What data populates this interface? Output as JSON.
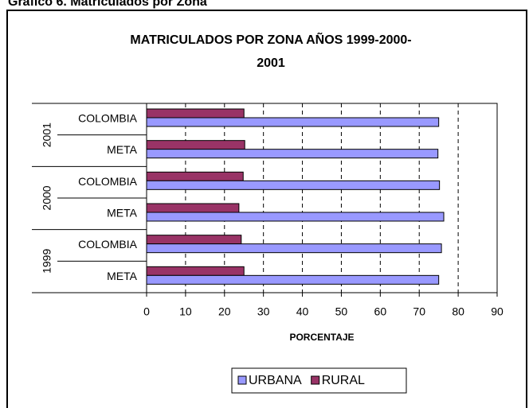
{
  "caption": "Gráfico 6. Matriculados por Zona",
  "chart_data": {
    "type": "bar",
    "orientation": "horizontal",
    "title_lines": [
      "MATRICULADOS POR ZONA AÑOS 1999-2000-",
      "2001"
    ],
    "x_label": "PORCENTAJE",
    "groups": [
      "2001",
      "2000",
      "1999"
    ],
    "categories": [
      "COLOMBIA",
      "META",
      "COLOMBIA",
      "META",
      "COLOMBIA",
      "META"
    ],
    "series": [
      {
        "name": "URBANA",
        "color": "#9999ff",
        "values": [
          75,
          74.8,
          75.2,
          76.3,
          75.7,
          75
        ]
      },
      {
        "name": "RURAL",
        "color": "#993366",
        "values": [
          25,
          25.2,
          24.8,
          23.7,
          24.3,
          25
        ]
      }
    ],
    "xlim": [
      0,
      90
    ],
    "xticks": [
      0,
      10,
      20,
      30,
      40,
      50,
      60,
      70,
      80,
      90
    ],
    "grid": true,
    "legend": "bottom"
  }
}
